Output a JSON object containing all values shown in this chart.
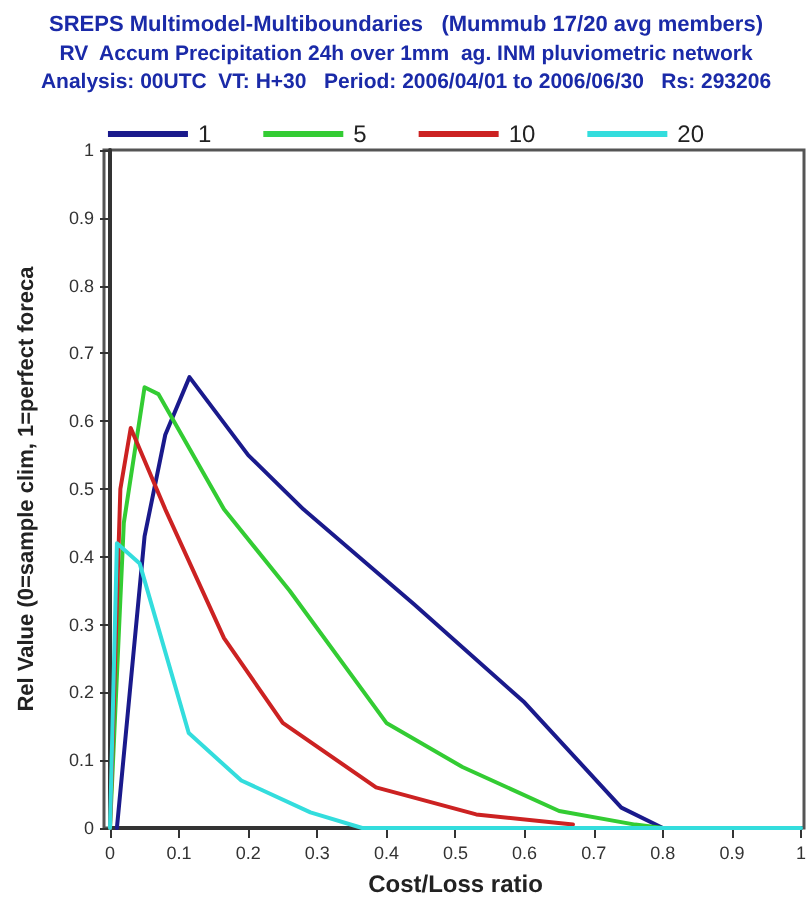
{
  "chart_data": {
    "type": "line",
    "title": "SREPS Multimodel-Multiboundaries   (Mummub 17/20 avg members)",
    "subtitle": "RV  Accum Precipitation 24h over 1mm  ag. INM pluviometric network\nAnalysis: 00UTC  VT: H+30   Period: 2006/04/01 to 2006/06/30   Rs: 293206",
    "xlabel": "Cost/Loss ratio",
    "ylabel": "Rel Value (0=sample clim, 1=perfect foreca",
    "xlim": [
      0,
      1
    ],
    "ylim": [
      0,
      1
    ],
    "xticks": [
      0,
      0.1,
      0.2,
      0.3,
      0.4,
      0.5,
      0.6,
      0.7,
      0.8,
      0.9,
      1
    ],
    "yticks": [
      0,
      0.1,
      0.2,
      0.3,
      0.4,
      0.5,
      0.6,
      0.7,
      0.8,
      0.9,
      1
    ],
    "grid": false,
    "legend": "top",
    "marker": "none",
    "line_style": "solid",
    "series": [
      {
        "name": "1",
        "color": "#1a1a8c",
        "x": [
          0.01,
          0.05,
          0.08,
          0.115,
          0.2,
          0.28,
          0.44,
          0.6,
          0.74,
          0.8,
          0.88
        ],
        "values": [
          0,
          0.43,
          0.58,
          0.665,
          0.55,
          0.47,
          0.33,
          0.185,
          0.03,
          0,
          0
        ]
      },
      {
        "name": "5",
        "color": "#33cc33",
        "x": [
          0,
          0.02,
          0.05,
          0.07,
          0.165,
          0.26,
          0.4,
          0.51,
          0.65,
          0.76,
          0.8
        ],
        "values": [
          0,
          0.45,
          0.65,
          0.64,
          0.47,
          0.35,
          0.155,
          0.09,
          0.025,
          0.005,
          0
        ]
      },
      {
        "name": "10",
        "color": "#cc2222",
        "x": [
          0,
          0.015,
          0.03,
          0.08,
          0.165,
          0.25,
          0.385,
          0.53,
          0.67
        ],
        "values": [
          0,
          0.5,
          0.59,
          0.47,
          0.28,
          0.155,
          0.06,
          0.02,
          0.005
        ]
      },
      {
        "name": "20",
        "color": "#33dddd",
        "x": [
          0,
          0.01,
          0.043,
          0.114,
          0.19,
          0.29,
          0.365,
          0.6,
          1
        ],
        "values": [
          0,
          0.42,
          0.39,
          0.14,
          0.07,
          0.023,
          0,
          0,
          0
        ]
      }
    ]
  }
}
